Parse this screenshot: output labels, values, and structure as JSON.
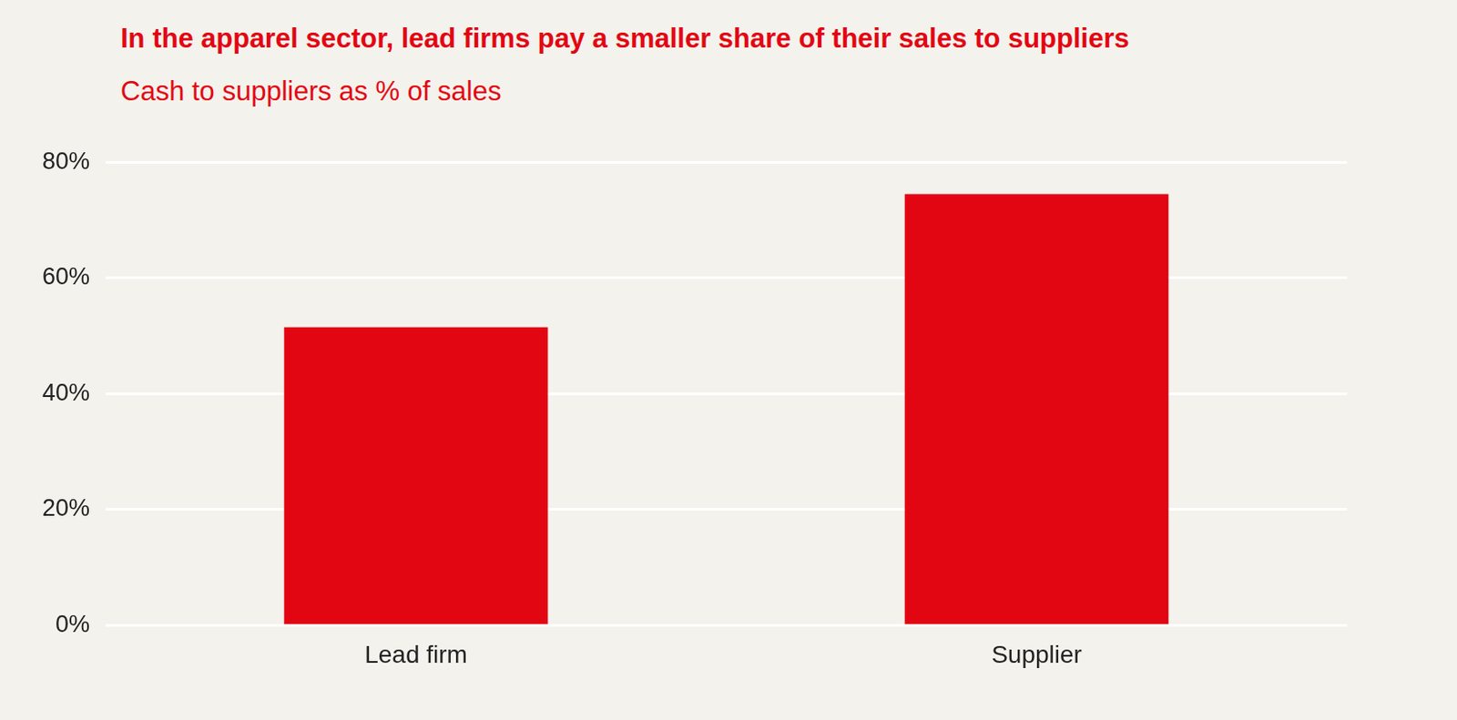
{
  "chart_data": {
    "type": "bar",
    "title": "In the apparel sector, lead firms pay a smaller share of their sales to suppliers",
    "subtitle": "Cash to suppliers as % of sales",
    "categories": [
      "Lead firm",
      "Supplier"
    ],
    "values": [
      51.5,
      74.5
    ],
    "color": "#e20613",
    "ylim": [
      0,
      80
    ],
    "yticks": [
      {
        "value": 0,
        "label": "0%"
      },
      {
        "value": 20,
        "label": "20%"
      },
      {
        "value": 40,
        "label": "40%"
      },
      {
        "value": 60,
        "label": "60%"
      },
      {
        "value": 80,
        "label": "80%"
      }
    ],
    "grid": true
  }
}
